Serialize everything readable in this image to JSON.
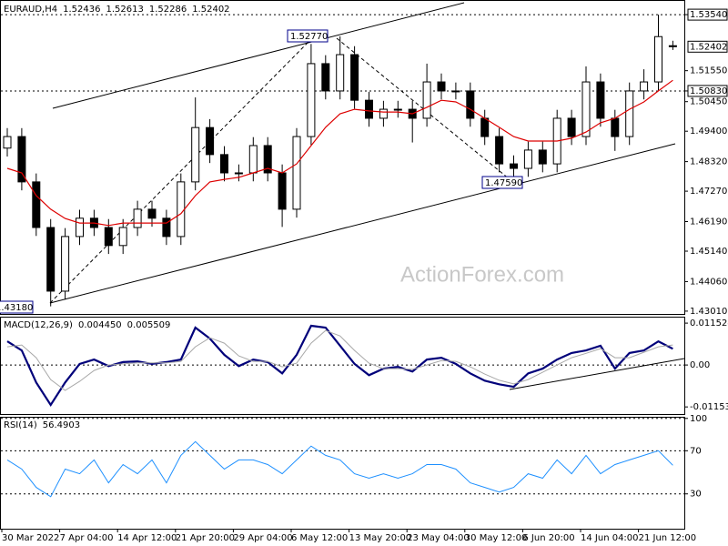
{
  "chart_data": [
    {
      "type": "candlestick",
      "title": "EURAUD,H4",
      "watermark": "ActionForex.com",
      "color": "#000000",
      "categories": [
        "30 Mar 2022",
        null,
        null,
        null,
        "7 Apr 04:00",
        null,
        null,
        null,
        "14 Apr 12:00",
        null,
        null,
        null,
        "21 Apr 20:00",
        null,
        null,
        null,
        "29 Apr 04:00",
        null,
        null,
        null,
        "6 May 12:00",
        null,
        null,
        null,
        "13 May 20:00",
        null,
        null,
        null,
        "23 May 04:00",
        null,
        null,
        null,
        "30 May 12:00",
        null,
        null,
        null,
        "6 Jun 20:00",
        null,
        null,
        null,
        "14 Jun 04:00",
        null,
        null,
        null,
        "21 Jun 12:00",
        null,
        null
      ],
      "open": [
        1.488,
        1.4921,
        1.476,
        1.4598,
        1.4372,
        1.4566,
        1.4631,
        1.4598,
        1.4534,
        1.4598,
        1.4663,
        1.4631,
        1.4566,
        1.476,
        1.4953,
        1.4857,
        1.4792,
        1.4792,
        1.4889,
        1.4792,
        1.4663,
        1.4921,
        1.518,
        1.5083,
        1.5212,
        1.505,
        1.4986,
        1.5018,
        1.5018,
        1.4986,
        1.5115,
        1.5083,
        1.5083,
        1.4986,
        1.4921,
        1.4824,
        1.4808,
        1.4873,
        1.4824,
        1.4986,
        1.4921,
        1.5115,
        1.4986,
        1.4921,
        1.5083,
        1.5115,
        1.52436
      ],
      "high": [
        1.4951,
        1.4951,
        1.479,
        1.4628,
        1.4596,
        1.4661,
        1.4661,
        1.4628,
        1.4628,
        1.4693,
        1.4693,
        1.4661,
        1.479,
        1.506,
        1.4983,
        1.4887,
        1.4822,
        1.4919,
        1.4919,
        1.4822,
        1.4951,
        1.525,
        1.521,
        1.5277,
        1.5242,
        1.508,
        1.5048,
        1.5048,
        1.5048,
        1.518,
        1.5145,
        1.5113,
        1.5113,
        1.5016,
        1.4951,
        1.4854,
        1.4903,
        1.4903,
        1.5016,
        1.5016,
        1.517,
        1.5145,
        1.5016,
        1.5113,
        1.516,
        1.5354,
        1.52613
      ],
      "low": [
        1.485,
        1.473,
        1.4568,
        1.4318,
        1.4342,
        1.4536,
        1.4568,
        1.4504,
        1.4504,
        1.4568,
        1.4601,
        1.4536,
        1.4536,
        1.473,
        1.4827,
        1.4762,
        1.4762,
        1.4762,
        1.4762,
        1.46,
        1.4633,
        1.4891,
        1.5053,
        1.5053,
        1.502,
        1.4956,
        1.4956,
        1.4988,
        1.49,
        1.4956,
        1.5053,
        1.5053,
        1.4956,
        1.4891,
        1.4794,
        1.4759,
        1.4778,
        1.4794,
        1.4794,
        1.4891,
        1.4891,
        1.4956,
        1.487,
        1.4891,
        1.5053,
        1.5085,
        1.52286
      ],
      "close": [
        1.4921,
        1.476,
        1.4598,
        1.4372,
        1.4566,
        1.4631,
        1.4598,
        1.4534,
        1.4598,
        1.4663,
        1.4631,
        1.4566,
        1.476,
        1.4953,
        1.4857,
        1.4792,
        1.4792,
        1.4889,
        1.4792,
        1.4663,
        1.4921,
        1.518,
        1.5083,
        1.5212,
        1.505,
        1.4986,
        1.5018,
        1.5018,
        1.4986,
        1.5115,
        1.5083,
        1.5083,
        1.4986,
        1.4921,
        1.4824,
        1.4808,
        1.4873,
        1.4824,
        1.4986,
        1.4921,
        1.5115,
        1.4986,
        1.4921,
        1.5083,
        1.5115,
        1.5276,
        1.52402
      ],
      "ma": {
        "color": "#dd0000",
        "values": [
          1.4808,
          1.4792,
          1.4711,
          1.4663,
          1.463,
          1.4614,
          1.4614,
          1.4605,
          1.4614,
          1.4614,
          1.4614,
          1.4614,
          1.4647,
          1.4711,
          1.476,
          1.4769,
          1.4776,
          1.4792,
          1.4808,
          1.4792,
          1.4824,
          1.4889,
          1.4954,
          1.5002,
          1.5018,
          1.5012,
          1.5008,
          1.5008,
          1.5002,
          1.5025,
          1.505,
          1.5044,
          1.5018,
          1.4986,
          1.4954,
          1.4921,
          1.4905,
          1.4905,
          1.4905,
          1.4915,
          1.4937,
          1.497,
          1.4986,
          1.5018,
          1.5044,
          1.5083,
          1.5121
        ]
      },
      "ylim": [
        1.4291,
        1.5406
      ],
      "yticks": [
        {
          "value": 1.5354,
          "label": "1.53540",
          "level": true
        },
        {
          "value": 1.5155,
          "label": "1.51550"
        },
        {
          "value": 1.5083,
          "label": "1.50830",
          "level": true
        },
        {
          "value": 1.5045,
          "label": "1.50450"
        },
        {
          "value": 1.494,
          "label": "1.49400"
        },
        {
          "value": 1.4832,
          "label": "1.48320"
        },
        {
          "value": 1.4727,
          "label": "1.47270"
        },
        {
          "value": 1.4619,
          "label": "1.46190"
        },
        {
          "value": 1.4514,
          "label": "1.45140"
        },
        {
          "value": 1.4406,
          "label": "1.44060"
        },
        {
          "value": 1.4301,
          "label": "1.43010"
        }
      ],
      "annotations": [
        "1.52770",
        "1.47590",
        "1.43180"
      ]
    },
    {
      "type": "line",
      "title": "MACD(12,26,9)",
      "series": [
        {
          "color": "#00007a",
          "width": 2.2,
          "values": [
            0.0065,
            0.004,
            -0.0048,
            -0.011,
            -0.0048,
            0.0003,
            0.0015,
            -0.0003,
            0.0008,
            0.001,
            0.0003,
            0.0008,
            0.0015,
            0.0103,
            0.0073,
            0.0028,
            -0.0003,
            0.0015,
            0.0008,
            -0.0023,
            0.0028,
            0.0108,
            0.0103,
            0.0053,
            0.0003,
            -0.0028,
            -0.001,
            -0.0005,
            -0.0018,
            0.0015,
            0.002,
            0.0003,
            -0.0023,
            -0.0043,
            -0.0053,
            -0.006,
            -0.0023,
            -0.001,
            0.0015,
            0.0033,
            0.004,
            0.0053,
            -0.001,
            0.0033,
            0.004,
            0.0065,
            0.00445
          ],
          "value_labels": [
            null,
            null,
            null,
            null,
            null,
            null,
            null,
            null,
            null,
            null,
            null,
            null,
            null,
            null,
            null,
            null,
            null,
            null,
            null,
            null,
            null,
            null,
            null,
            null,
            null,
            null,
            null,
            null,
            null,
            null,
            null,
            null,
            null,
            null,
            null,
            null,
            null,
            null,
            null,
            null,
            null,
            null,
            null,
            null,
            null,
            null,
            "0.004450"
          ]
        },
        {
          "color": "#a8a8a8",
          "width": 1,
          "values": [
            0.005,
            0.0055,
            0.002,
            -0.004,
            -0.007,
            -0.0045,
            -0.0015,
            0,
            0.0003,
            0.0006,
            0.0006,
            0.0006,
            0.001,
            0.005,
            0.0075,
            0.006,
            0.0025,
            0.001,
            0.001,
            -0.0005,
            0.0005,
            0.006,
            0.0095,
            0.008,
            0.004,
            0.0005,
            -0.001,
            -0.001,
            -0.0012,
            0,
            0.0012,
            0.001,
            -0.0005,
            -0.0025,
            -0.0042,
            -0.0052,
            -0.004,
            -0.002,
            0,
            0.002,
            0.0032,
            0.0045,
            0.002,
            0.002,
            0.0035,
            0.005,
            0.005509
          ]
        }
      ],
      "ylim": [
        -0.0135,
        0.0133
      ],
      "yticks": [
        0.011524,
        {
          "value": 0,
          "label": "0.00",
          "level": true
        },
        -0.011537
      ]
    },
    {
      "type": "line",
      "title": "RSI(14)",
      "grid": true,
      "series": [
        {
          "color": "#1e90ff",
          "width": 1,
          "values": [
            61.5,
            53.0,
            36.0,
            27.4,
            53.0,
            48.7,
            61.5,
            40.2,
            57.2,
            48.7,
            61.5,
            40.2,
            65.7,
            78.5,
            65.7,
            53.0,
            61.5,
            61.5,
            57.2,
            48.7,
            61.5,
            74.3,
            65.7,
            61.5,
            48.7,
            44.5,
            48.7,
            44.5,
            48.7,
            57.2,
            57.2,
            53.0,
            40.2,
            36.0,
            31.7,
            36.0,
            48.7,
            44.5,
            61.5,
            48.7,
            65.7,
            48.7,
            57.2,
            61.5,
            65.7,
            70.0,
            56.4903
          ]
        }
      ],
      "ylim": [
        -2.3,
        101.5
      ],
      "yticks": [
        100,
        70,
        30
      ]
    }
  ]
}
